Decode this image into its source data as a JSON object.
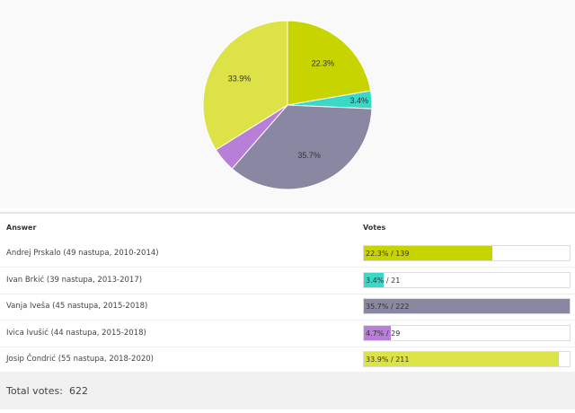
{
  "chart_data": {
    "type": "pie",
    "title": "",
    "slices": [
      {
        "label": "Andrej Prskalo (49 nastupa, 2010-2014)",
        "percent": 22.3,
        "votes": 139,
        "percent_label": "22.3%",
        "bar_label": "22.3% / 139",
        "color": "#c8d400"
      },
      {
        "label": "Ivan Brkić (39 nastupa, 2013-2017)",
        "percent": 3.4,
        "votes": 21,
        "percent_label": "3.4%",
        "bar_label": "3.4% / 21",
        "color": "#3ad8c6"
      },
      {
        "label": "Vanja Iveša (45 nastupa, 2015-2018)",
        "percent": 35.7,
        "votes": 222,
        "percent_label": "35.7%",
        "bar_label": "35.7% / 222",
        "color": "#8a87a2"
      },
      {
        "label": "Ivica Ivušić (44 nastupa, 2015-2018)",
        "percent": 4.7,
        "votes": 29,
        "percent_label": "",
        "bar_label": "4.7% / 29",
        "color": "#b77fd8"
      },
      {
        "label": "Josip Čondrić (55 nastupa, 2018-2020)",
        "percent": 33.9,
        "votes": 211,
        "percent_label": "33.9%",
        "bar_label": "33.9% / 211",
        "color": "#dde347"
      }
    ]
  },
  "table": {
    "answer_header": "Answer",
    "votes_header": "Votes"
  },
  "footer": {
    "label": "Total votes:",
    "value": "622"
  }
}
